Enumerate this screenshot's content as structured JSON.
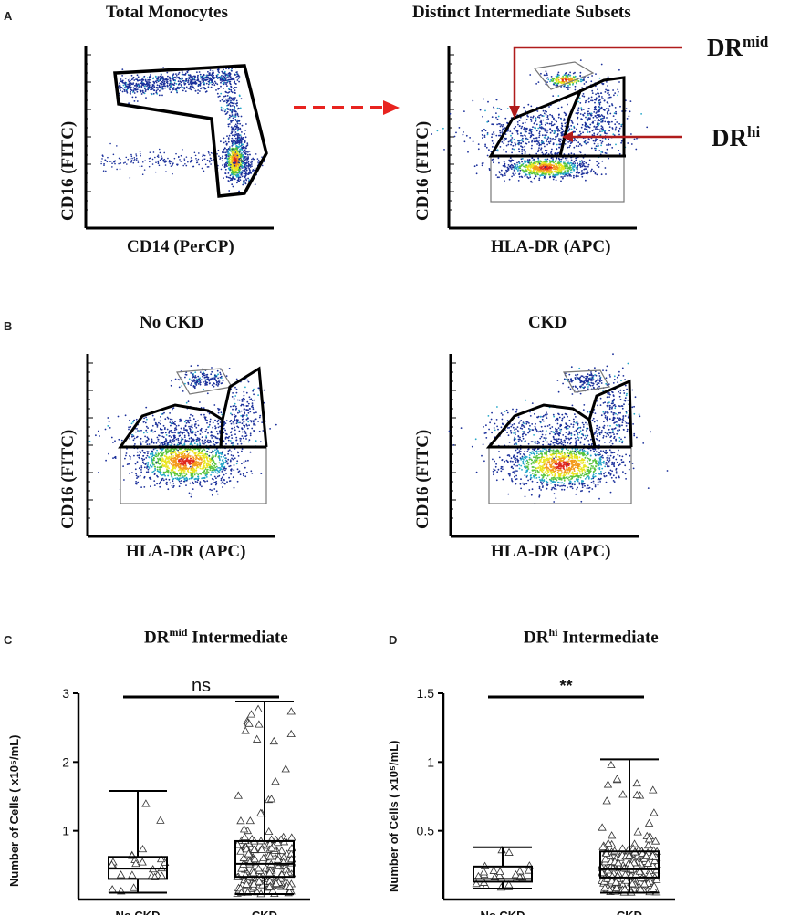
{
  "panels": {
    "A": {
      "letter": "A",
      "left_title": "Total Monocytes",
      "right_title": "Distinct Intermediate Subsets",
      "left_ylabel": "CD16 (FITC)",
      "left_xlabel": "CD14 (PerCP)",
      "right_ylabel": "CD16 (FITC)",
      "right_xlabel": "HLA-DR (APC)",
      "annot_mid_base": "DR",
      "annot_mid_sup": "mid",
      "annot_hi_base": "DR",
      "annot_hi_sup": "hi"
    },
    "B": {
      "letter": "B",
      "left_title": "No CKD",
      "right_title": "CKD",
      "left_ylabel": "CD16 (FITC)",
      "left_xlabel": "HLA-DR (APC)",
      "right_ylabel": "CD16 (FITC)",
      "right_xlabel": "HLA-DR (APC)"
    }
  },
  "colors": {
    "arrow_red": "#b01c1c",
    "dash_red": "#e8231f",
    "scatter_blue": "#1a2f9a"
  },
  "chart_data": [
    {
      "panel": "C",
      "type": "box",
      "letter": "C",
      "title_base": "DR",
      "title_sup": "mid",
      "title_rest": " Intermediate",
      "ylabel": "Number of Cells ( x10⁵/mL)",
      "ylim": [
        0,
        3
      ],
      "yticks": [
        1,
        2,
        3
      ],
      "ytick_labels": [
        "1",
        "2",
        "3"
      ],
      "categories": [
        "No CKD",
        "CKD"
      ],
      "significance": "ns",
      "boxes": [
        {
          "name": "No CKD",
          "min": 0.1,
          "q1": 0.3,
          "median": 0.45,
          "q3": 0.62,
          "max": 1.58
        },
        {
          "name": "CKD",
          "min": 0.08,
          "q1": 0.33,
          "median": 0.52,
          "q3": 0.85,
          "max": 2.88
        }
      ]
    },
    {
      "panel": "D",
      "type": "box",
      "letter": "D",
      "title_base": "DR",
      "title_sup": "hi",
      "title_rest": " Intermediate",
      "ylabel": "Number of Cells ( x10⁵/mL)",
      "ylim": [
        0,
        1.5
      ],
      "yticks": [
        0.5,
        1,
        1.5
      ],
      "ytick_labels": [
        "0.5",
        "1",
        "1.5"
      ],
      "categories": [
        "No CKD",
        "CKD"
      ],
      "significance": "**",
      "boxes": [
        {
          "name": "No CKD",
          "min": 0.08,
          "q1": 0.13,
          "median": 0.15,
          "q3": 0.24,
          "max": 0.38
        },
        {
          "name": "CKD",
          "min": 0.05,
          "q1": 0.16,
          "median": 0.22,
          "q3": 0.35,
          "max": 1.02
        }
      ]
    }
  ]
}
